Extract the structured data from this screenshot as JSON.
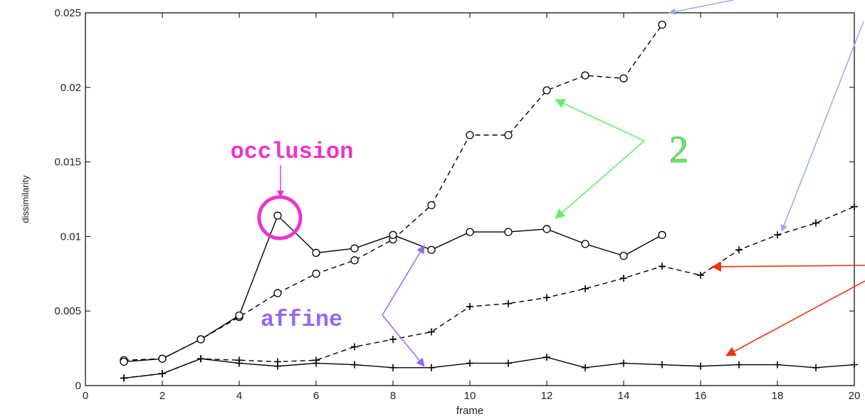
{
  "chart_data": {
    "type": "line",
    "xlabel": "frame",
    "ylabel": "dissimilarity",
    "xlim": [
      0,
      20
    ],
    "ylim": [
      0,
      0.025
    ],
    "xticks": [
      "0",
      "2",
      "4",
      "6",
      "8",
      "10",
      "12",
      "14",
      "16",
      "18",
      "20"
    ],
    "yticks": [
      "0",
      "0.005",
      "0.01",
      "0.015",
      "0.02",
      "0.025"
    ],
    "grid": false,
    "series": [
      {
        "marker": "circle",
        "linestyle": "dashed",
        "x": [
          1,
          2,
          3,
          4,
          5,
          6,
          7,
          8,
          9,
          10,
          11,
          12,
          13,
          14,
          15
        ],
        "y": [
          0.0017,
          0.0018,
          0.0031,
          0.0046,
          0.0062,
          0.0075,
          0.0084,
          0.0098,
          0.0121,
          0.0168,
          0.0168,
          0.0198,
          0.0208,
          0.0206,
          0.0242
        ]
      },
      {
        "marker": "circle",
        "linestyle": "solid",
        "x": [
          1,
          2,
          3,
          4,
          5,
          6,
          7,
          8,
          9,
          10,
          11,
          12,
          13,
          14,
          15
        ],
        "y": [
          0.0016,
          0.0018,
          0.0031,
          0.0047,
          0.0114,
          0.0089,
          0.0092,
          0.0101,
          0.0091,
          0.0103,
          0.0103,
          0.0105,
          0.0095,
          0.0087,
          0.0101
        ]
      },
      {
        "marker": "plus",
        "linestyle": "dashed",
        "x": [
          1,
          2,
          3,
          4,
          5,
          6,
          7,
          8,
          9,
          10,
          11,
          12,
          13,
          14,
          15,
          16,
          17,
          18,
          19,
          20
        ],
        "y": [
          0.0005,
          0.0008,
          0.0018,
          0.0017,
          0.0016,
          0.0017,
          0.0026,
          0.0031,
          0.0036,
          0.0053,
          0.0055,
          0.0059,
          0.0065,
          0.0072,
          0.008,
          0.0074,
          0.0091,
          0.0101,
          0.0109,
          0.012
        ]
      },
      {
        "marker": "plus",
        "linestyle": "solid",
        "x": [
          1,
          2,
          3,
          4,
          5,
          6,
          7,
          8,
          9,
          10,
          11,
          12,
          13,
          14,
          15,
          16,
          17,
          18,
          19,
          20
        ],
        "y": [
          0.0005,
          0.0008,
          0.0018,
          0.0015,
          0.0013,
          0.0015,
          0.0014,
          0.0012,
          0.0012,
          0.0015,
          0.0015,
          0.0019,
          0.0012,
          0.0015,
          0.0014,
          0.0013,
          0.0014,
          0.0014,
          0.0012,
          0.0014
        ]
      }
    ],
    "annotations": {
      "occlusion": {
        "text": "occlusion",
        "color": "#ee33cc"
      },
      "affine": {
        "text": "affine",
        "color": "#9966ee"
      },
      "two": {
        "text": "2",
        "color": "#66ee66"
      },
      "blue_arrow_color": "#99aaee",
      "red_arrow_color": "#ee3311"
    }
  }
}
